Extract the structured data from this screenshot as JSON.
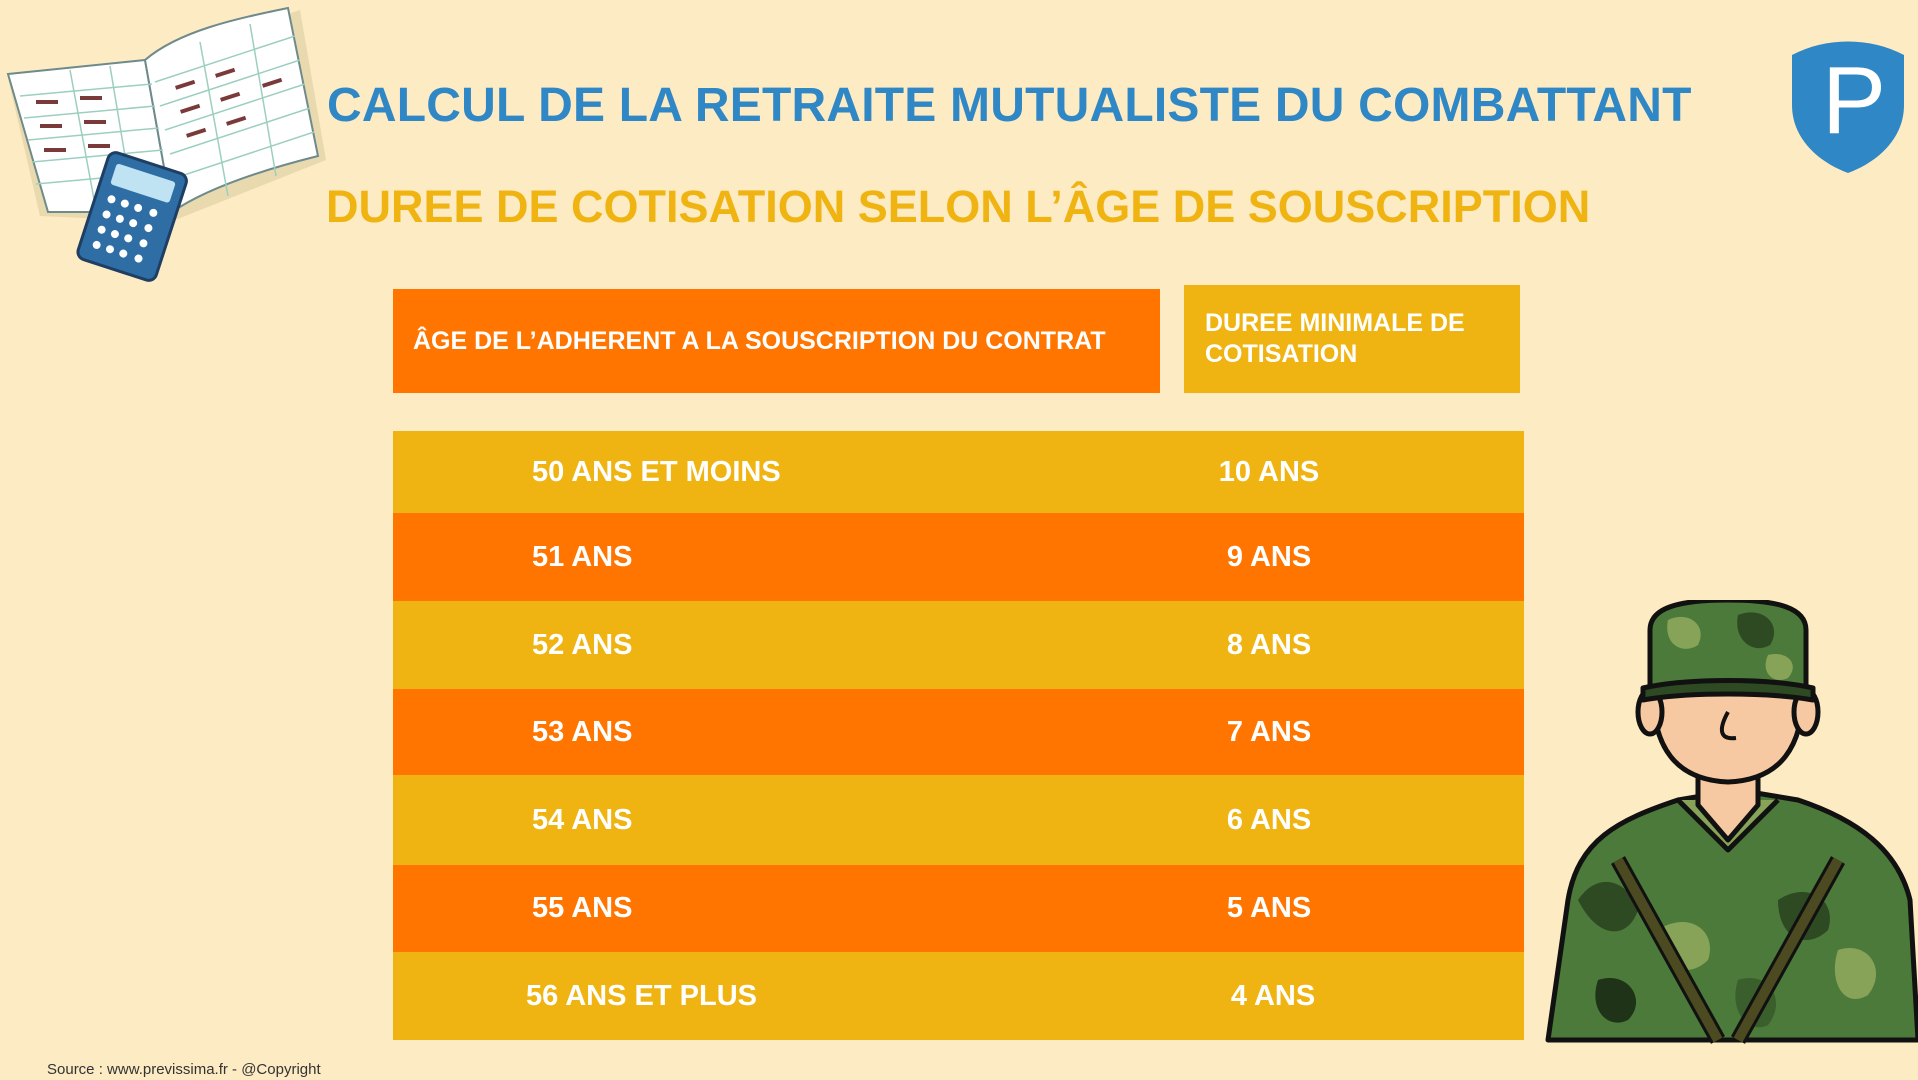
{
  "title": "CALCUL DE LA RETRAITE MUTUALISTE DU COMBATTANT",
  "subtitle": "DUREE DE COTISATION SELON L’ÂGE  DE SOUSCRIPTION",
  "table": {
    "header_age": "ÂGE DE L’ADHERENT A LA SOUSCRIPTION DU CONTRAT",
    "header_duration_line1": "DUREE MINIMALE DE",
    "header_duration_line2": "COTISATION",
    "rows": [
      {
        "age": "50 ANS ET MOINS",
        "duration": "10 ANS"
      },
      {
        "age": "51 ANS",
        "duration": "9 ANS"
      },
      {
        "age": "52 ANS",
        "duration": "8 ANS"
      },
      {
        "age": "53 ANS",
        "duration": "7 ANS"
      },
      {
        "age": "54 ANS",
        "duration": "6 ANS"
      },
      {
        "age": "55 ANS",
        "duration": "5 ANS"
      },
      {
        "age": "56 ANS ET PLUS",
        "duration": "4 ANS"
      }
    ]
  },
  "source": "Source : www.previssima.fr - @Copyright",
  "logo": {
    "letter": "P",
    "color": "#2F87C5"
  },
  "colors": {
    "background": "#FDEBC4",
    "title": "#2F87C5",
    "subtitle": "#F0B412",
    "orange": "#FF7500",
    "yellow": "#F0B412"
  },
  "illustrations": {
    "top_left": "book-and-calculator-illustration",
    "bottom_right": "soldier-illustration"
  }
}
